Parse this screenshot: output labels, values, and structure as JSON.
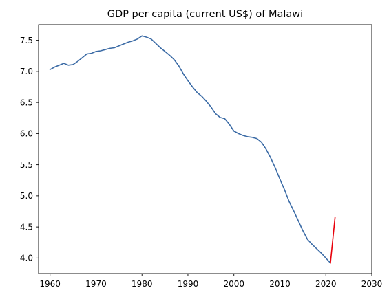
{
  "chart_data": {
    "type": "line",
    "title": "GDP per capita (current US$) of Malawi",
    "xlabel": "",
    "ylabel": "",
    "xlim": [
      1957.5,
      2030
    ],
    "ylim": [
      3.75,
      7.75
    ],
    "x_ticks": [
      1960,
      1970,
      1980,
      1990,
      2000,
      2010,
      2020,
      2030
    ],
    "y_ticks": [
      4.0,
      4.5,
      5.0,
      5.5,
      6.0,
      6.5,
      7.0,
      7.5
    ],
    "x_tick_labels": [
      "1960",
      "1970",
      "1980",
      "1990",
      "2000",
      "2010",
      "2020",
      "2030"
    ],
    "y_tick_labels": [
      "4.0",
      "4.5",
      "5.0",
      "5.5",
      "6.0",
      "6.5",
      "7.0",
      "7.5"
    ],
    "grid": false,
    "legend": "none",
    "series": [
      {
        "color": "#3a6aa5",
        "x": [
          1960,
          1961,
          1962,
          1963,
          1964,
          1965,
          1966,
          1967,
          1968,
          1969,
          1970,
          1971,
          1972,
          1973,
          1974,
          1975,
          1976,
          1977,
          1978,
          1979,
          1980,
          1981,
          1982,
          1983,
          1984,
          1985,
          1986,
          1987,
          1988,
          1989,
          1990,
          1991,
          1992,
          1993,
          1994,
          1995,
          1996,
          1997,
          1998,
          1999,
          2000,
          2001,
          2002,
          2003,
          2004,
          2005,
          2006,
          2007,
          2008,
          2009,
          2010,
          2011,
          2012,
          2013,
          2014,
          2015,
          2016,
          2017,
          2018,
          2019,
          2020,
          2021
        ],
        "values": [
          7.03,
          7.07,
          7.1,
          7.13,
          7.1,
          7.11,
          7.16,
          7.22,
          7.28,
          7.29,
          7.32,
          7.33,
          7.35,
          7.37,
          7.38,
          7.41,
          7.44,
          7.47,
          7.49,
          7.52,
          7.57,
          7.55,
          7.52,
          7.45,
          7.38,
          7.32,
          7.26,
          7.19,
          7.09,
          6.96,
          6.85,
          6.75,
          6.66,
          6.6,
          6.52,
          6.43,
          6.32,
          6.26,
          6.24,
          6.15,
          6.04,
          6.0,
          5.97,
          5.95,
          5.94,
          5.92,
          5.86,
          5.75,
          5.61,
          5.45,
          5.27,
          5.1,
          4.91,
          4.76,
          4.6,
          4.44,
          4.3,
          4.22,
          4.15,
          4.08,
          4.0,
          3.92
        ]
      },
      {
        "color": "#e8000b",
        "x": [
          2021,
          2022
        ],
        "values": [
          3.92,
          4.65
        ]
      }
    ]
  }
}
